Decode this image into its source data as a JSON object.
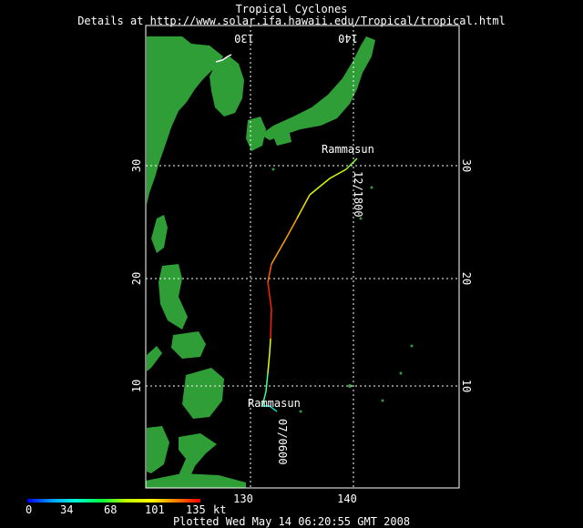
{
  "header": {
    "title": "Tropical Cyclones",
    "subtitle": "Details at http://www.solar.ifa.hawaii.edu/Tropical/tropical.html"
  },
  "map": {
    "lon_labels": [
      "130",
      "140"
    ],
    "lat_labels": [
      "10",
      "20",
      "30"
    ],
    "storm_name_start": "Rammasun",
    "storm_name_end": "Rammasun",
    "start_time_label": "07/0600",
    "end_time_label": "12/1800",
    "land_color": "#2f9e36"
  },
  "colorbar": {
    "ticks": [
      "0",
      "34",
      "68",
      "101",
      "135"
    ],
    "unit": "kt"
  },
  "footer": {
    "plotted": "Plotted Wed May 14 06:20:55 GMT 2008"
  }
}
